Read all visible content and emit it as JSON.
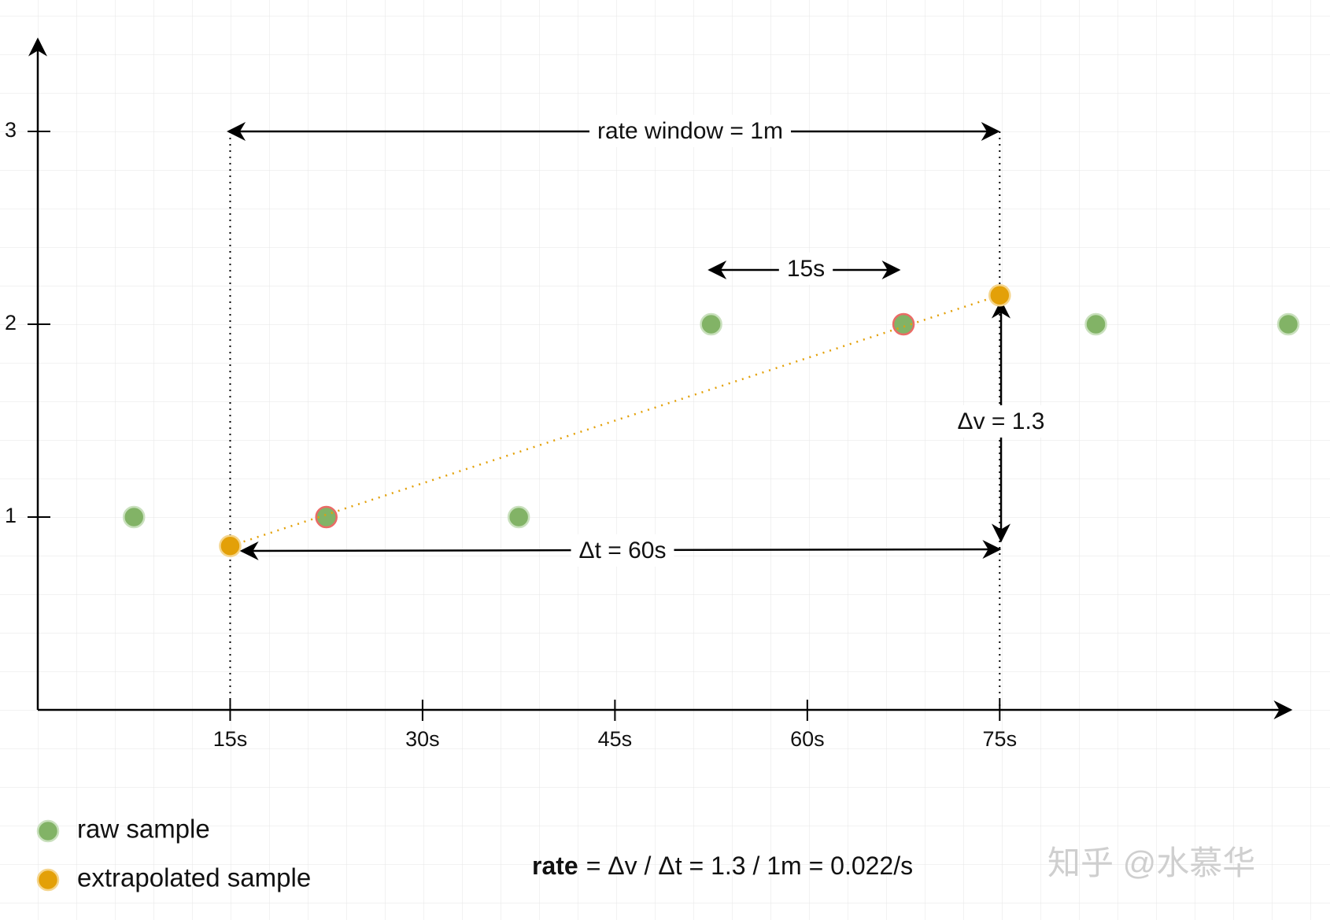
{
  "chart_data": {
    "type": "scatter",
    "xlim": [
      0,
      97.5
    ],
    "ylim": [
      0,
      3.5
    ],
    "xticks": [
      {
        "value": 15,
        "label": "15s"
      },
      {
        "value": 30,
        "label": "30s"
      },
      {
        "value": 45,
        "label": "45s"
      },
      {
        "value": 60,
        "label": "60s"
      },
      {
        "value": 75,
        "label": "75s"
      }
    ],
    "yticks": [
      1,
      2,
      3
    ],
    "grid": true,
    "series": [
      {
        "name": "raw sample",
        "color": "#82b366",
        "x": [
          7.5,
          22.5,
          37.5,
          52.5,
          67.5,
          82.5,
          97.5
        ],
        "values": [
          1,
          1,
          1,
          2,
          2,
          2,
          2
        ],
        "outline": [
          "#c9e0bd",
          "#ea6b66",
          "#c9e0bd",
          "#c9e0bd",
          "#ea6b66",
          "#c9e0bd",
          "#c9e0bd"
        ]
      },
      {
        "name": "extrapolated sample",
        "color": "#e3a008",
        "x": [
          15,
          75
        ],
        "values": [
          0.85,
          2.15
        ],
        "outline": [
          "#f5d58c",
          "#f5d58c"
        ],
        "line_style": "dotted"
      }
    ],
    "annotations": [
      "rate window = 1m",
      "15s",
      "Δv = 1.3",
      "Δt = 60s"
    ],
    "formula": {
      "bold": "rate",
      "rest": "= Δv / Δt = 1.3 / 1m = 0.022/s"
    },
    "watermark": "知乎 @水慕华"
  }
}
